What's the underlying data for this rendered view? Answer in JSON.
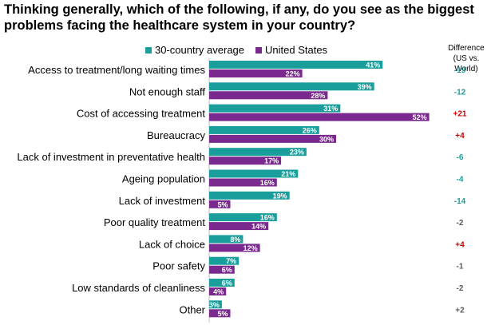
{
  "title": "Thinking generally, which of the following, if any, do you see as the biggest problems facing the healthcare system in your country?",
  "legend": [
    {
      "name": "30-country average",
      "color": "#1a9e9c"
    },
    {
      "name": "United States",
      "color": "#7a2a8e"
    }
  ],
  "diff_header": [
    "Difference",
    "(US vs. World)"
  ],
  "colors": {
    "positive": "#cc0000",
    "negative_teal": "#1a9e9c",
    "neutral": "#595959"
  },
  "chart_data": {
    "type": "bar",
    "orientation": "horizontal",
    "categories": [
      "Access to treatment/long waiting times",
      "Not enough staff",
      "Cost of accessing treatment",
      "Bureaucracy",
      "Lack of investment in preventative health",
      "Ageing population",
      "Lack of investment",
      "Poor quality treatment",
      "Lack of choice",
      "Poor safety",
      "Low standards of cleanliness",
      "Other"
    ],
    "series": [
      {
        "name": "30-country average",
        "color": "#1a9e9c",
        "values": [
          41,
          39,
          31,
          26,
          23,
          21,
          19,
          16,
          8,
          7,
          6,
          3
        ]
      },
      {
        "name": "United States",
        "color": "#7a2a8e",
        "values": [
          22,
          28,
          52,
          30,
          17,
          16,
          5,
          14,
          12,
          6,
          4,
          5
        ]
      }
    ],
    "value_labels": {
      "30-country average": [
        "41%",
        "39%",
        "31%",
        "26%",
        "23%",
        "21%",
        "19%",
        "16%",
        "8%",
        "7%",
        "6%",
        "3%"
      ],
      "United States": [
        "22%",
        "28%",
        "52%",
        "30%",
        "17%",
        "16%",
        "5%",
        "14%",
        "12%",
        "6%",
        "4%",
        "5%"
      ]
    },
    "difference": [
      "-19",
      "-12",
      "+21",
      "+4",
      "-6",
      "-4",
      "-14",
      "-2",
      "+4",
      "-1",
      "-2",
      "+2"
    ],
    "difference_colors": [
      "#1a9e9c",
      "#1a9e9c",
      "#cc0000",
      "#cc0000",
      "#1a9e9c",
      "#1a9e9c",
      "#1a9e9c",
      "#595959",
      "#cc0000",
      "#595959",
      "#595959",
      "#595959"
    ],
    "xlim": [
      0,
      52
    ]
  }
}
